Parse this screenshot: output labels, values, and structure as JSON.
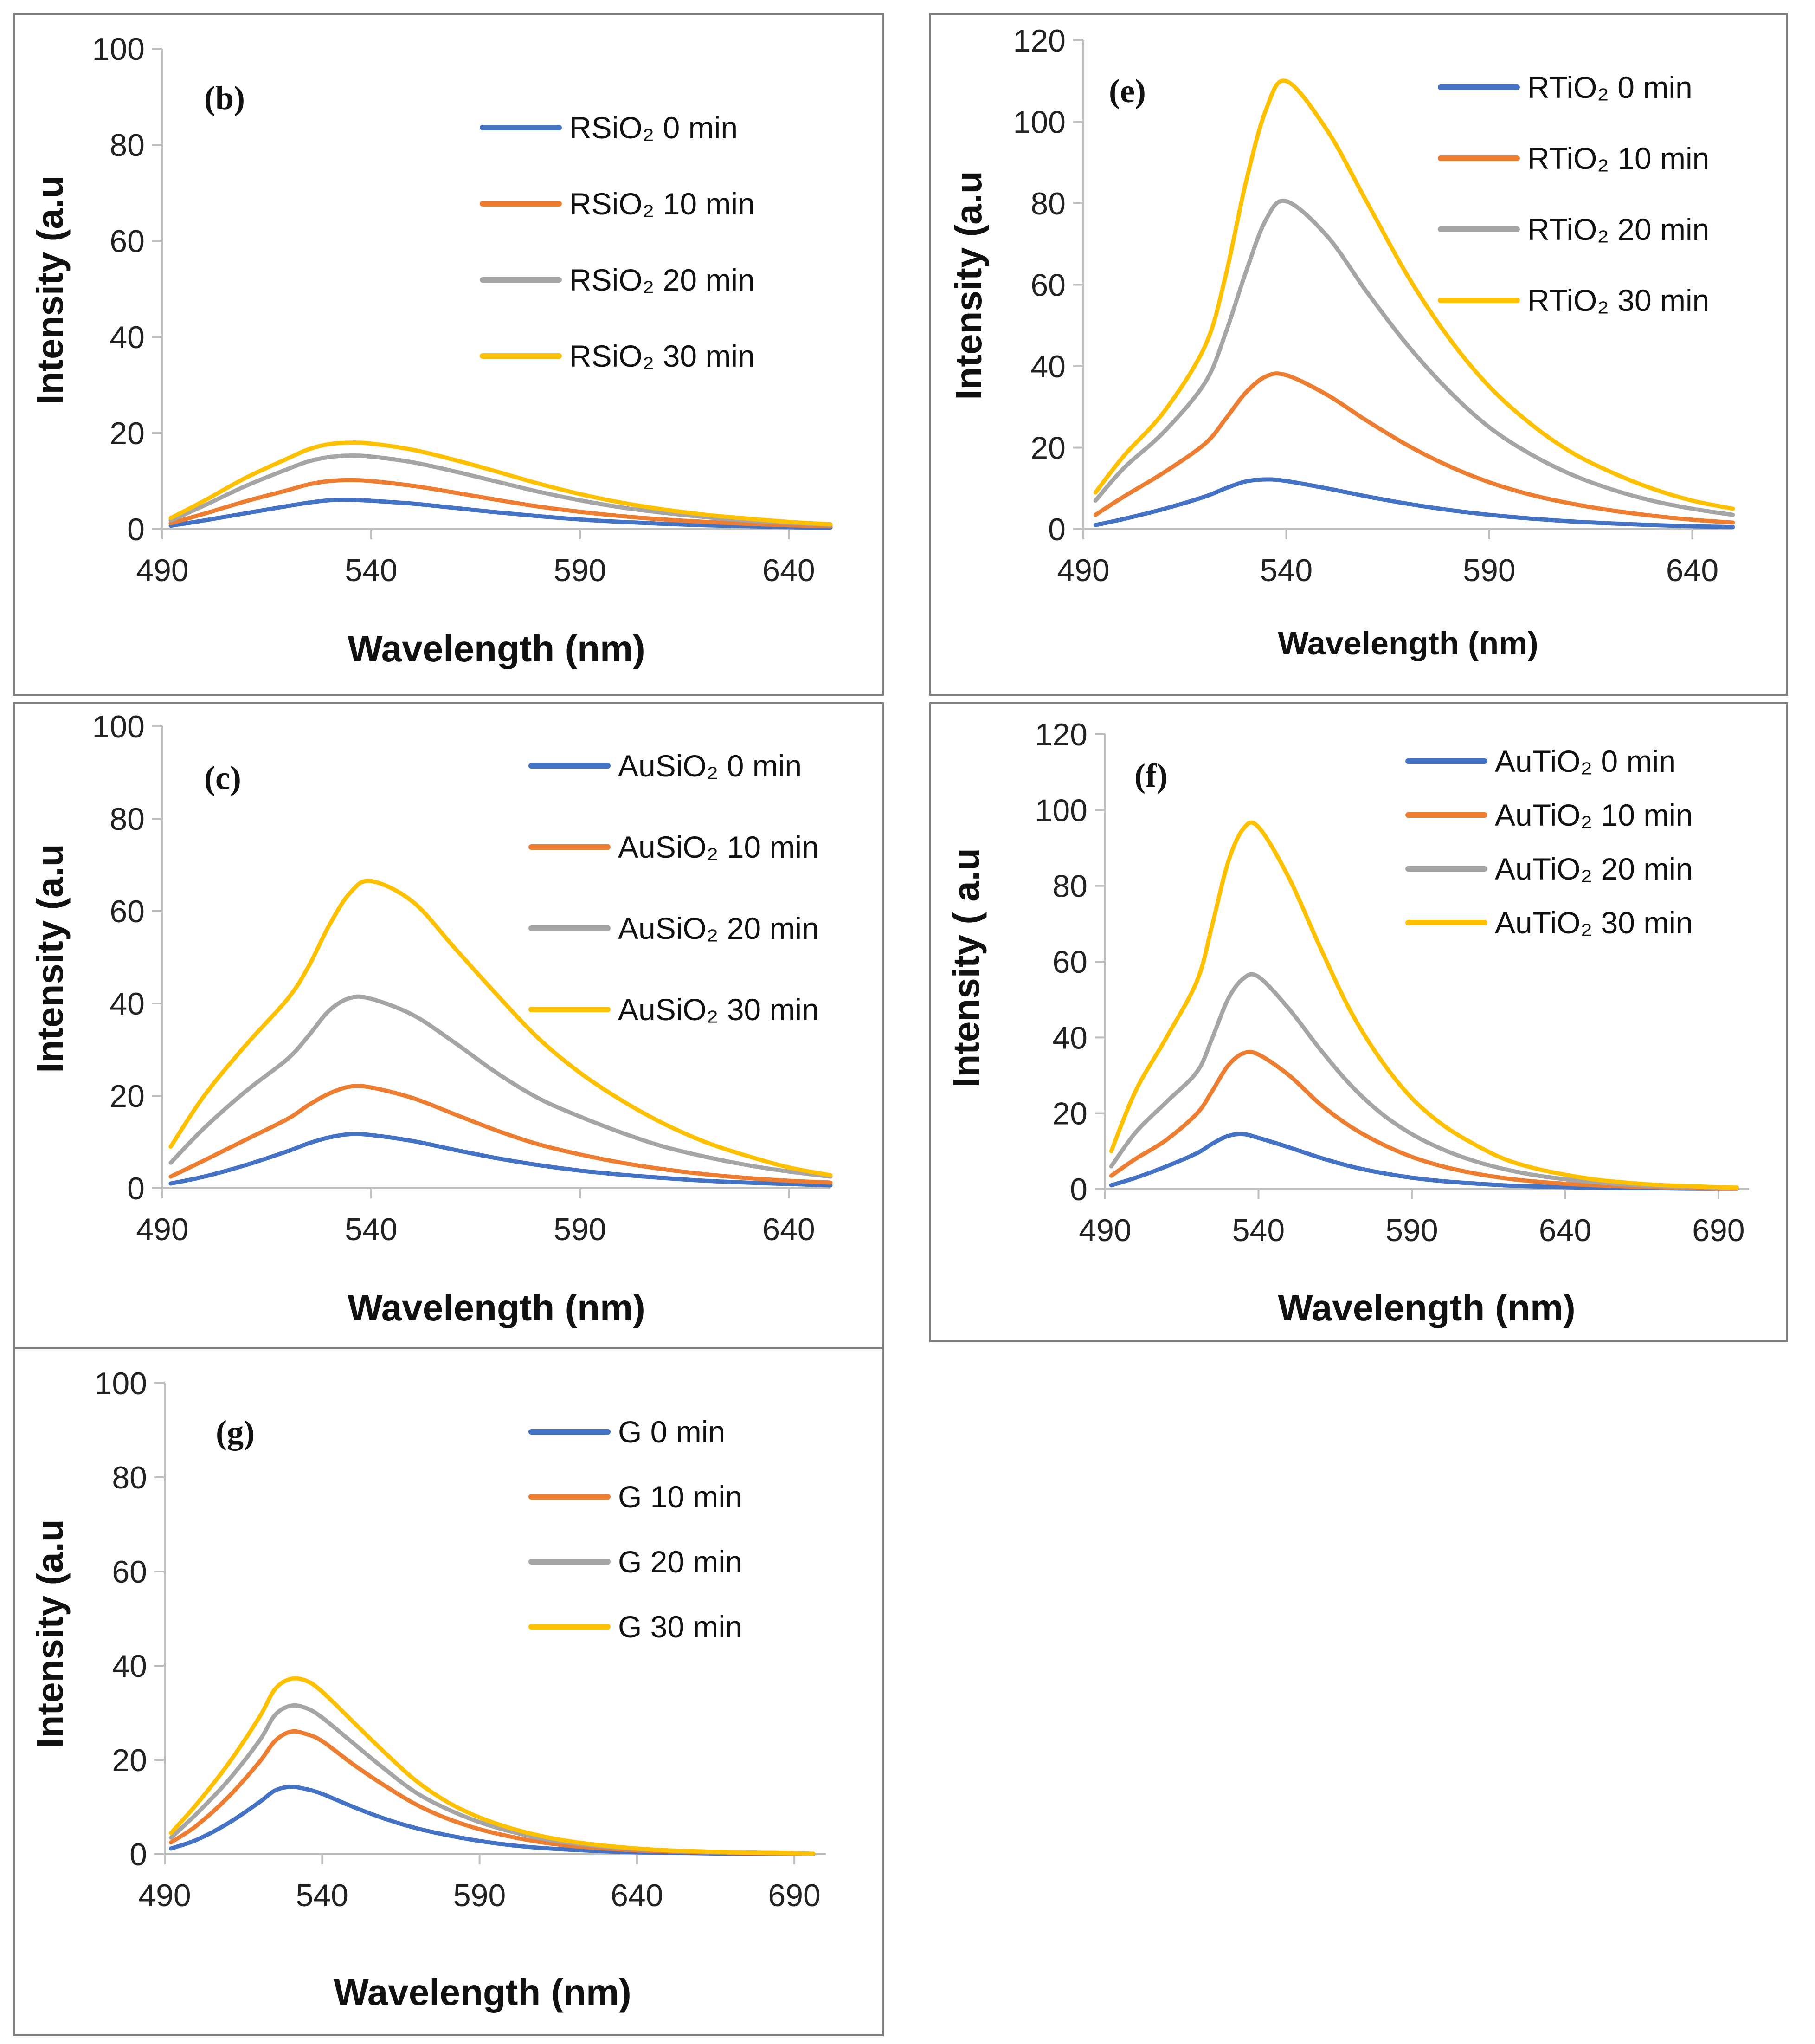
{
  "colors": {
    "series": [
      "#4472C4",
      "#ED7D31",
      "#A5A5A5",
      "#FFC000"
    ],
    "frame": "#7f7f7f",
    "axis": "#bfbfbf"
  },
  "chart_data": [
    {
      "id": "b",
      "type": "line",
      "panel_label": "(b)",
      "xlabel": "Wavelength (nm)",
      "ylabel": "Intensity (a.u",
      "xlim": [
        490,
        650
      ],
      "ylim": [
        0,
        100
      ],
      "xticks": [
        490,
        540,
        590,
        640
      ],
      "yticks": [
        0,
        20,
        40,
        60,
        80,
        100
      ],
      "legend_position": "top-right",
      "x": [
        492,
        500,
        510,
        520,
        525,
        530,
        535,
        540,
        550,
        560,
        570,
        580,
        590,
        600,
        610,
        620,
        630,
        640,
        650
      ],
      "series": [
        {
          "name": "RSiO₂ 0 min",
          "values": [
            0.7,
            1.8,
            3.3,
            4.8,
            5.5,
            6.0,
            6.1,
            5.9,
            5.3,
            4.4,
            3.5,
            2.7,
            2.0,
            1.5,
            1.1,
            0.8,
            0.6,
            0.4,
            0.3
          ]
        },
        {
          "name": "RSiO₂ 10 min",
          "values": [
            1.2,
            3.2,
            5.8,
            8.1,
            9.3,
            10.0,
            10.2,
            10.0,
            9.0,
            7.6,
            6.1,
            4.7,
            3.6,
            2.7,
            2.0,
            1.5,
            1.1,
            0.8,
            0.6
          ]
        },
        {
          "name": "RSiO₂ 20 min",
          "values": [
            1.8,
            4.9,
            9.0,
            12.5,
            14.1,
            15.0,
            15.3,
            15.1,
            13.9,
            12.0,
            9.9,
            7.8,
            6.0,
            4.5,
            3.4,
            2.5,
            1.8,
            1.3,
            0.9
          ]
        },
        {
          "name": "RSiO₂ 30 min",
          "values": [
            2.3,
            5.9,
            10.7,
            14.7,
            16.6,
            17.7,
            18.0,
            17.8,
            16.5,
            14.4,
            12.0,
            9.5,
            7.3,
            5.5,
            4.1,
            3.0,
            2.2,
            1.5,
            1.0
          ]
        }
      ]
    },
    {
      "id": "e",
      "type": "line",
      "panel_label": "(e)",
      "xlabel": "Wavelength (nm)",
      "ylabel": "Intensity (a.u",
      "xlim": [
        490,
        650
      ],
      "ylim": [
        0,
        120
      ],
      "xticks": [
        490,
        540,
        590,
        640
      ],
      "yticks": [
        0,
        20,
        40,
        60,
        80,
        100,
        120
      ],
      "legend_position": "top-right",
      "x": [
        493,
        500,
        510,
        520,
        525,
        530,
        535,
        540,
        550,
        560,
        570,
        580,
        590,
        600,
        610,
        620,
        630,
        640,
        650
      ],
      "series": [
        {
          "name": "RTiO₂ 0 min",
          "values": [
            1.0,
            2.5,
            5.0,
            8.0,
            10.0,
            11.7,
            12.2,
            11.8,
            10.0,
            8.0,
            6.2,
            4.7,
            3.5,
            2.6,
            1.9,
            1.4,
            1.0,
            0.7,
            0.5
          ]
        },
        {
          "name": "RTiO₂ 10 min",
          "values": [
            3.5,
            8.0,
            14.0,
            21.0,
            27.0,
            33.5,
            37.5,
            37.8,
            33.0,
            26.5,
            20.5,
            15.5,
            11.5,
            8.5,
            6.3,
            4.6,
            3.3,
            2.3,
            1.6
          ]
        },
        {
          "name": "RTiO₂ 20 min",
          "values": [
            7.0,
            15.0,
            24.0,
            36.0,
            48.0,
            63.0,
            76.0,
            80.5,
            72.0,
            58.0,
            45.0,
            34.0,
            25.0,
            18.5,
            13.5,
            9.8,
            7.0,
            5.0,
            3.5
          ]
        },
        {
          "name": "RTiO₂ 30 min",
          "values": [
            9.0,
            18.0,
            29.0,
            45.0,
            62.0,
            85.0,
            103.0,
            110.0,
            98.0,
            80.0,
            62.0,
            47.0,
            35.0,
            26.0,
            19.0,
            14.0,
            10.0,
            7.0,
            5.0
          ]
        }
      ]
    },
    {
      "id": "c",
      "type": "line",
      "panel_label": "(c)",
      "xlabel": "Wavelength (nm)",
      "ylabel": "Intensity (a.u",
      "xlim": [
        490,
        650
      ],
      "ylim": [
        0,
        100
      ],
      "xticks": [
        490,
        540,
        590,
        640
      ],
      "yticks": [
        0,
        20,
        40,
        60,
        80,
        100
      ],
      "legend_position": "top-right",
      "x": [
        492,
        500,
        510,
        520,
        525,
        530,
        535,
        540,
        550,
        560,
        570,
        580,
        590,
        600,
        610,
        620,
        630,
        640,
        650
      ],
      "series": [
        {
          "name": "AuSiO₂ 0 min",
          "values": [
            1.0,
            2.5,
            5.0,
            8.0,
            9.7,
            11.0,
            11.7,
            11.5,
            10.2,
            8.3,
            6.5,
            5.0,
            3.8,
            2.9,
            2.2,
            1.6,
            1.2,
            0.9,
            0.6
          ]
        },
        {
          "name": "AuSiO₂ 10 min",
          "values": [
            2.5,
            6.0,
            10.5,
            15.0,
            18.0,
            20.5,
            22.0,
            21.8,
            19.5,
            16.0,
            12.5,
            9.5,
            7.3,
            5.5,
            4.1,
            3.0,
            2.2,
            1.6,
            1.2
          ]
        },
        {
          "name": "AuSiO₂ 20 min",
          "values": [
            5.5,
            13.0,
            21.0,
            28.0,
            33.0,
            38.5,
            41.2,
            41.0,
            37.5,
            31.5,
            25.0,
            19.5,
            15.5,
            12.0,
            9.0,
            6.8,
            5.0,
            3.6,
            2.5
          ]
        },
        {
          "name": "AuSiO₂ 30 min",
          "values": [
            9.0,
            20.0,
            31.0,
            41.0,
            48.0,
            57.0,
            64.0,
            66.5,
            62.0,
            52.0,
            42.0,
            32.5,
            25.0,
            19.0,
            14.0,
            10.0,
            7.0,
            4.5,
            2.8
          ]
        }
      ]
    },
    {
      "id": "f",
      "type": "line",
      "panel_label": "(f)",
      "xlabel": "Wavelength (nm)",
      "ylabel": "Intensity ( a.u",
      "xlim": [
        490,
        700
      ],
      "ylim": [
        0,
        120
      ],
      "xticks": [
        490,
        540,
        590,
        640,
        690
      ],
      "yticks": [
        0,
        20,
        40,
        60,
        80,
        100,
        120
      ],
      "legend_position": "top-right",
      "x": [
        492,
        500,
        510,
        520,
        525,
        530,
        535,
        540,
        550,
        560,
        570,
        580,
        590,
        600,
        610,
        620,
        630,
        640,
        650,
        660,
        670,
        680,
        690,
        696
      ],
      "series": [
        {
          "name": "AuTiO₂ 0 min",
          "values": [
            1.0,
            3.0,
            6.0,
            9.5,
            12.0,
            14.0,
            14.5,
            13.5,
            11.0,
            8.3,
            6.0,
            4.3,
            3.0,
            2.1,
            1.5,
            1.0,
            0.7,
            0.5,
            0.3,
            0.2,
            0.2,
            0.1,
            0.1,
            0.1
          ]
        },
        {
          "name": "AuTiO₂ 10 min",
          "values": [
            3.5,
            8.0,
            13.0,
            20.0,
            26.0,
            32.5,
            35.8,
            35.5,
            30.0,
            22.5,
            16.5,
            12.0,
            8.5,
            6.0,
            4.2,
            2.9,
            2.0,
            1.4,
            1.0,
            0.7,
            0.5,
            0.3,
            0.2,
            0.2
          ]
        },
        {
          "name": "AuTiO₂ 20 min",
          "values": [
            6.0,
            15.0,
            23.0,
            31.0,
            40.0,
            50.0,
            55.5,
            56.0,
            47.5,
            37.0,
            27.5,
            20.0,
            14.5,
            10.5,
            7.5,
            5.3,
            3.7,
            2.6,
            1.8,
            1.2,
            0.8,
            0.6,
            0.4,
            0.3
          ]
        },
        {
          "name": "AuTiO₂ 30 min",
          "values": [
            10.0,
            26.0,
            40.0,
            55.0,
            70.0,
            86.0,
            95.0,
            95.5,
            82.0,
            64.0,
            47.0,
            34.0,
            24.0,
            17.0,
            12.0,
            8.0,
            5.5,
            3.8,
            2.5,
            1.7,
            1.1,
            0.8,
            0.5,
            0.4
          ]
        }
      ]
    },
    {
      "id": "g",
      "type": "line",
      "panel_label": "(g)",
      "xlabel": "Wavelength (nm)",
      "ylabel": "Intensity (a.u",
      "xlim": [
        490,
        700
      ],
      "ylim": [
        0,
        100
      ],
      "xticks": [
        490,
        540,
        590,
        640,
        690
      ],
      "yticks": [
        0,
        20,
        40,
        60,
        80,
        100
      ],
      "legend_position": "top-right",
      "x": [
        492,
        500,
        510,
        520,
        525,
        530,
        535,
        540,
        550,
        560,
        570,
        580,
        590,
        600,
        610,
        620,
        630,
        640,
        650,
        660,
        670,
        680,
        690,
        696
      ],
      "series": [
        {
          "name": "G 0 min",
          "values": [
            1.2,
            3.0,
            6.5,
            11.0,
            13.5,
            14.3,
            13.8,
            12.8,
            10.0,
            7.5,
            5.5,
            4.0,
            2.8,
            1.9,
            1.3,
            0.9,
            0.6,
            0.4,
            0.3,
            0.2,
            0.1,
            0.1,
            0.1,
            0.0
          ]
        },
        {
          "name": "G 10 min",
          "values": [
            2.5,
            6.0,
            12.0,
            19.5,
            24.0,
            26.0,
            25.5,
            24.0,
            19.0,
            14.5,
            10.5,
            7.5,
            5.3,
            3.7,
            2.5,
            1.7,
            1.2,
            0.8,
            0.6,
            0.4,
            0.3,
            0.2,
            0.1,
            0.1
          ]
        },
        {
          "name": "G 20 min",
          "values": [
            3.5,
            8.5,
            15.5,
            24.0,
            29.5,
            31.5,
            31.0,
            29.0,
            23.5,
            18.0,
            13.0,
            9.5,
            6.8,
            4.8,
            3.3,
            2.3,
            1.6,
            1.1,
            0.8,
            0.5,
            0.4,
            0.3,
            0.2,
            0.1
          ]
        },
        {
          "name": "G 30 min",
          "values": [
            4.5,
            10.5,
            19.0,
            29.0,
            35.0,
            37.2,
            36.8,
            34.5,
            28.0,
            21.5,
            15.5,
            11.0,
            7.8,
            5.5,
            3.8,
            2.6,
            1.8,
            1.2,
            0.8,
            0.6,
            0.4,
            0.3,
            0.2,
            0.1
          ]
        }
      ]
    }
  ]
}
